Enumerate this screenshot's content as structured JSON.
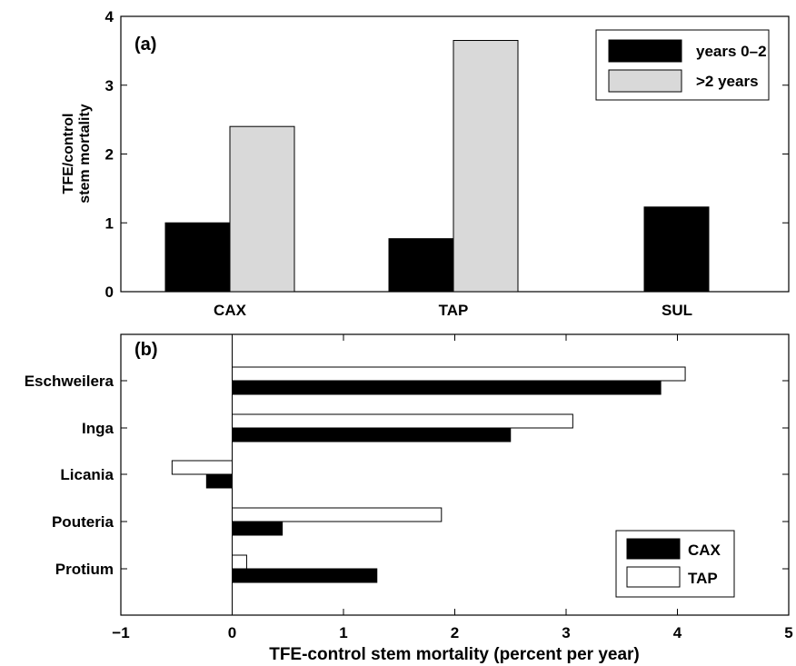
{
  "chart_data": [
    {
      "type": "bar",
      "panel_label": "(a)",
      "categories": [
        "CAX",
        "TAP",
        "SUL"
      ],
      "series": [
        {
          "name": "years 0–2",
          "values": [
            1.0,
            0.77,
            1.23
          ],
          "color": "#000000"
        },
        {
          "name": ">2 years",
          "values": [
            2.4,
            3.65,
            null
          ],
          "color": "#d9d9d9"
        }
      ],
      "ylabel_lines": [
        "TFE/control",
        "stem mortality"
      ],
      "ylim": [
        0,
        4
      ],
      "yticks": [
        "0",
        "1",
        "2",
        "3",
        "4"
      ],
      "legend": "top-right",
      "grid": false
    },
    {
      "type": "bar",
      "orientation": "horizontal",
      "panel_label": "(b)",
      "categories": [
        "Eschweilera",
        "Inga",
        "Licania",
        "Pouteria",
        "Protium"
      ],
      "series": [
        {
          "name": "CAX",
          "values": [
            3.85,
            2.5,
            -0.23,
            0.45,
            1.3
          ],
          "color": "#000000"
        },
        {
          "name": "TAP",
          "values": [
            4.07,
            3.06,
            -0.54,
            1.88,
            0.13
          ],
          "color": "#ffffff"
        }
      ],
      "xlabel": "TFE-control stem mortality (percent per year)",
      "xlim": [
        -1,
        5
      ],
      "xticks": [
        "−1",
        "0",
        "1",
        "2",
        "3",
        "4",
        "5"
      ],
      "legend": "bottom-right",
      "grid": false
    }
  ]
}
